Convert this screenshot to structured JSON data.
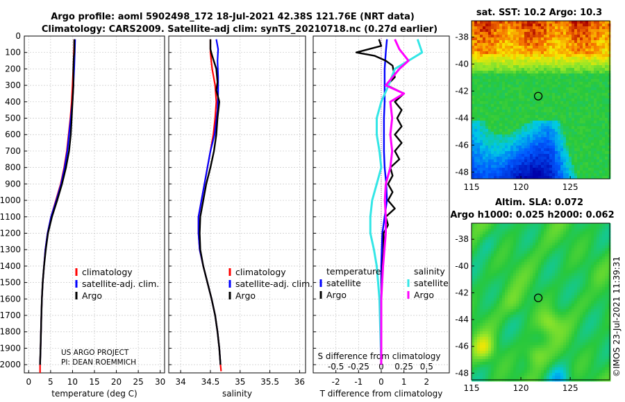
{
  "header": {
    "line1": "Argo profile: aoml 5902498_172 18-Jul-2021 42.38S 121.76E (NRT data)",
    "line2": "Climatology: CARS2009. Satellite-adj clim: synTS_20210718.nc (0.27d earlier)"
  },
  "credits": {
    "project": "US ARGO PROJECT",
    "pi": "PI: DEAN ROEMMICH",
    "stamp": "©IMOS 23-Jul-2021 11:39:31"
  },
  "colors": {
    "climatology": "#ff0000",
    "satellite": "#0000ff",
    "argo": "#000000",
    "sat_s": "#33e6e6",
    "argo_s": "#ff00ff"
  },
  "chart_data": [
    {
      "type": "line",
      "id": "temperature",
      "xlabel": "temperature (deg C)",
      "ylabel": "",
      "xlim": [
        -1,
        31
      ],
      "ylim": [
        0,
        2050
      ],
      "xticks": [
        0,
        5,
        10,
        15,
        20,
        25,
        30
      ],
      "yticks": [
        0,
        100,
        200,
        300,
        400,
        500,
        600,
        700,
        800,
        900,
        1000,
        1100,
        1200,
        1300,
        1400,
        1500,
        1600,
        1700,
        1800,
        1900,
        2000
      ],
      "legend": [
        "climatology",
        "satellite-adj. clim.",
        "Argo"
      ],
      "series": [
        {
          "name": "climatology",
          "color": "#ff0000",
          "points": [
            [
              10.4,
              20
            ],
            [
              10.3,
              100
            ],
            [
              10.2,
              180
            ],
            [
              10.0,
              300
            ],
            [
              9.8,
              400
            ],
            [
              9.5,
              500
            ],
            [
              9.1,
              600
            ],
            [
              8.7,
              700
            ],
            [
              8.1,
              800
            ],
            [
              7.3,
              900
            ],
            [
              6.2,
              1000
            ],
            [
              5.1,
              1100
            ],
            [
              4.3,
              1200
            ],
            [
              3.8,
              1300
            ],
            [
              3.5,
              1400
            ],
            [
              3.2,
              1500
            ],
            [
              3.0,
              1600
            ],
            [
              2.9,
              1700
            ],
            [
              2.8,
              1800
            ],
            [
              2.7,
              1900
            ],
            [
              2.6,
              2000
            ],
            [
              2.6,
              2050
            ]
          ]
        },
        {
          "name": "satellite-adj. clim.",
          "color": "#0000ff",
          "points": [
            [
              10.6,
              20
            ],
            [
              10.5,
              100
            ],
            [
              10.4,
              180
            ],
            [
              10.2,
              300
            ],
            [
              10.0,
              400
            ],
            [
              9.6,
              500
            ],
            [
              9.2,
              600
            ],
            [
              8.8,
              700
            ],
            [
              8.2,
              800
            ],
            [
              7.4,
              900
            ],
            [
              6.3,
              1000
            ],
            [
              5.1,
              1100
            ],
            [
              4.3,
              1200
            ],
            [
              3.8,
              1300
            ],
            [
              3.5,
              1400
            ],
            [
              3.2,
              1500
            ],
            [
              3.0,
              1600
            ],
            [
              2.9,
              1700
            ],
            [
              2.8,
              1800
            ],
            [
              2.7,
              1900
            ],
            [
              2.6,
              2000
            ]
          ]
        },
        {
          "name": "Argo",
          "color": "#000000",
          "points": [
            [
              10.4,
              20
            ],
            [
              10.4,
              100
            ],
            [
              10.3,
              130
            ],
            [
              10.2,
              200
            ],
            [
              10.2,
              300
            ],
            [
              10.0,
              400
            ],
            [
              9.8,
              500
            ],
            [
              9.6,
              600
            ],
            [
              9.2,
              700
            ],
            [
              8.5,
              800
            ],
            [
              7.6,
              900
            ],
            [
              6.5,
              1000
            ],
            [
              5.3,
              1100
            ],
            [
              4.4,
              1200
            ],
            [
              3.9,
              1300
            ],
            [
              3.5,
              1400
            ],
            [
              3.2,
              1500
            ],
            [
              3.0,
              1600
            ],
            [
              2.9,
              1700
            ],
            [
              2.8,
              1800
            ],
            [
              2.7,
              1900
            ],
            [
              2.6,
              2000
            ]
          ]
        }
      ],
      "annotations": [
        "US ARGO PROJECT",
        "PI: DEAN ROEMMICH"
      ]
    },
    {
      "type": "line",
      "id": "salinity",
      "xlabel": "salinity",
      "xlim": [
        33.8,
        36.1
      ],
      "ylim": [
        0,
        2050
      ],
      "xticks": [
        34,
        34.5,
        35,
        35.5,
        36
      ],
      "ytick_labels_shown": false,
      "legend": [
        "climatology",
        "satellite-adj. clim.",
        "Argo"
      ],
      "series": [
        {
          "name": "climatology",
          "color": "#ff0000",
          "points": [
            [
              34.5,
              20
            ],
            [
              34.5,
              100
            ],
            [
              34.53,
              200
            ],
            [
              34.58,
              300
            ],
            [
              34.6,
              400
            ],
            [
              34.58,
              500
            ],
            [
              34.55,
              600
            ],
            [
              34.5,
              700
            ],
            [
              34.45,
              800
            ],
            [
              34.4,
              900
            ],
            [
              34.35,
              1000
            ],
            [
              34.3,
              1100
            ],
            [
              34.3,
              1200
            ],
            [
              34.32,
              1300
            ],
            [
              34.38,
              1400
            ],
            [
              34.45,
              1500
            ],
            [
              34.52,
              1600
            ],
            [
              34.58,
              1700
            ],
            [
              34.62,
              1800
            ],
            [
              34.65,
              1900
            ],
            [
              34.67,
              2000
            ],
            [
              34.68,
              2040
            ]
          ]
        },
        {
          "name": "satellite-adj. clim.",
          "color": "#0000ff",
          "points": [
            [
              34.6,
              20
            ],
            [
              34.63,
              80
            ],
            [
              34.62,
              150
            ],
            [
              34.63,
              250
            ],
            [
              34.63,
              350
            ],
            [
              34.62,
              450
            ],
            [
              34.57,
              600
            ],
            [
              34.5,
              700
            ],
            [
              34.45,
              800
            ],
            [
              34.4,
              900
            ],
            [
              34.35,
              1000
            ],
            [
              34.3,
              1100
            ],
            [
              34.3,
              1200
            ],
            [
              34.32,
              1300
            ],
            [
              34.38,
              1400
            ],
            [
              34.45,
              1500
            ],
            [
              34.52,
              1600
            ],
            [
              34.58,
              1700
            ],
            [
              34.62,
              1800
            ],
            [
              34.65,
              1900
            ],
            [
              34.67,
              2000
            ]
          ]
        },
        {
          "name": "Argo",
          "color": "#000000",
          "points": [
            [
              34.5,
              20
            ],
            [
              34.5,
              80
            ],
            [
              34.53,
              120
            ],
            [
              34.6,
              200
            ],
            [
              34.62,
              280
            ],
            [
              34.6,
              330
            ],
            [
              34.65,
              400
            ],
            [
              34.62,
              500
            ],
            [
              34.6,
              600
            ],
            [
              34.56,
              700
            ],
            [
              34.5,
              800
            ],
            [
              34.43,
              900
            ],
            [
              34.38,
              1000
            ],
            [
              34.33,
              1100
            ],
            [
              34.32,
              1200
            ],
            [
              34.33,
              1300
            ],
            [
              34.38,
              1400
            ],
            [
              34.45,
              1500
            ],
            [
              34.52,
              1600
            ],
            [
              34.58,
              1700
            ],
            [
              34.62,
              1800
            ],
            [
              34.65,
              1900
            ],
            [
              34.67,
              2000
            ]
          ]
        }
      ]
    },
    {
      "type": "line",
      "id": "difference",
      "xlabel": "T difference from climatology",
      "xlabel2": "S difference from climatology",
      "xlim": [
        -3,
        3
      ],
      "ylim": [
        0,
        2050
      ],
      "xticks": [
        -2,
        -1,
        0,
        1,
        2
      ],
      "xtick_labels": [
        "-2",
        "-1",
        "0",
        "1",
        "2"
      ],
      "s_ticks": [
        -0.5,
        -0.25,
        0,
        0.25,
        0.5
      ],
      "s_tick_labels": [
        "-0.5",
        "-0.25",
        "0",
        "0.25",
        "0.5"
      ],
      "legend_t_title": "temperature",
      "legend_s_title": "salinity",
      "legend": [
        "satellite",
        "Argo",
        "satellite",
        "Argo"
      ],
      "series": [
        {
          "name": "T satellite",
          "color": "#0000ff",
          "points": [
            [
              0.25,
              20
            ],
            [
              0.2,
              100
            ],
            [
              0.15,
              200
            ],
            [
              0.15,
              300
            ],
            [
              0.15,
              400
            ],
            [
              0.12,
              500
            ],
            [
              0.12,
              600
            ],
            [
              0.12,
              700
            ],
            [
              0.15,
              800
            ],
            [
              0.22,
              900
            ],
            [
              0.25,
              1000
            ],
            [
              0.15,
              1100
            ],
            [
              0.05,
              1200
            ],
            [
              0.02,
              1300
            ],
            [
              0.0,
              1400
            ],
            [
              0.0,
              1500
            ],
            [
              0.0,
              1700
            ],
            [
              0.0,
              2000
            ]
          ]
        },
        {
          "name": "T Argo",
          "color": "#000000",
          "points": [
            [
              -0.1,
              20
            ],
            [
              0.0,
              60
            ],
            [
              -1.1,
              100
            ],
            [
              -0.3,
              120
            ],
            [
              0.2,
              150
            ],
            [
              0.5,
              180
            ],
            [
              0.6,
              250
            ],
            [
              0.25,
              300
            ],
            [
              1.0,
              350
            ],
            [
              0.6,
              400
            ],
            [
              0.9,
              450
            ],
            [
              0.7,
              500
            ],
            [
              0.9,
              550
            ],
            [
              0.6,
              600
            ],
            [
              0.9,
              650
            ],
            [
              0.6,
              700
            ],
            [
              0.8,
              750
            ],
            [
              0.4,
              800
            ],
            [
              0.5,
              850
            ],
            [
              0.3,
              900
            ],
            [
              0.5,
              950
            ],
            [
              0.3,
              1000
            ],
            [
              0.6,
              1050
            ],
            [
              0.2,
              1100
            ],
            [
              0.3,
              1150
            ],
            [
              0.1,
              1200
            ],
            [
              0.1,
              1300
            ],
            [
              0.05,
              1400
            ],
            [
              0.0,
              1600
            ],
            [
              0.0,
              2000
            ]
          ]
        },
        {
          "name": "S satellite",
          "color": "#33e6e6",
          "points": [
            [
              0.4,
              20
            ],
            [
              0.45,
              100
            ],
            [
              0.3,
              150
            ],
            [
              0.15,
              200
            ],
            [
              0.08,
              300
            ],
            [
              0.0,
              400
            ],
            [
              -0.05,
              500
            ],
            [
              -0.05,
              600
            ],
            [
              -0.02,
              700
            ],
            [
              0.0,
              800
            ],
            [
              -0.05,
              900
            ],
            [
              -0.1,
              1000
            ],
            [
              -0.12,
              1100
            ],
            [
              -0.12,
              1200
            ],
            [
              -0.08,
              1300
            ],
            [
              -0.05,
              1400
            ],
            [
              -0.02,
              1600
            ],
            [
              0.0,
              2000
            ]
          ]
        },
        {
          "name": "S Argo",
          "color": "#ff00ff",
          "points": [
            [
              0.15,
              20
            ],
            [
              0.2,
              80
            ],
            [
              0.3,
              150
            ],
            [
              0.2,
              200
            ],
            [
              0.05,
              300
            ],
            [
              0.25,
              350
            ],
            [
              0.1,
              400
            ],
            [
              0.12,
              500
            ],
            [
              0.1,
              600
            ],
            [
              0.12,
              700
            ],
            [
              0.1,
              800
            ],
            [
              0.05,
              900
            ],
            [
              0.04,
              1000
            ],
            [
              0.05,
              1100
            ],
            [
              0.05,
              1200
            ],
            [
              0.02,
              1400
            ],
            [
              0.0,
              1600
            ],
            [
              0.0,
              2000
            ]
          ]
        }
      ]
    },
    {
      "type": "heatmap",
      "id": "sst-map",
      "title": "sat. SST: 10.2 Argo: 10.3",
      "xlim": [
        115,
        129
      ],
      "ylim": [
        -48.5,
        -36.8
      ],
      "xticks": [
        115,
        120,
        125
      ],
      "yticks": [
        -38,
        -40,
        -42,
        -44,
        -46,
        -48
      ],
      "ytick_labels": [
        "-38",
        "-40",
        "-42",
        "-44",
        "-46",
        "-48"
      ],
      "marker": [
        121.76,
        -42.38
      ]
    },
    {
      "type": "heatmap",
      "id": "sla-map",
      "title": "Altim. SLA: 0.072",
      "title2": "Argo h1000: 0.025 h2000: 0.062",
      "xlim": [
        115,
        129
      ],
      "ylim": [
        -48.5,
        -36.8
      ],
      "xticks": [
        115,
        120,
        125
      ],
      "yticks": [
        -38,
        -40,
        -42,
        -44,
        -46,
        -48
      ],
      "ytick_labels": [
        "-38",
        "-40",
        "-42",
        "-44",
        "-46",
        "-48"
      ],
      "marker": [
        121.76,
        -42.38
      ]
    }
  ]
}
